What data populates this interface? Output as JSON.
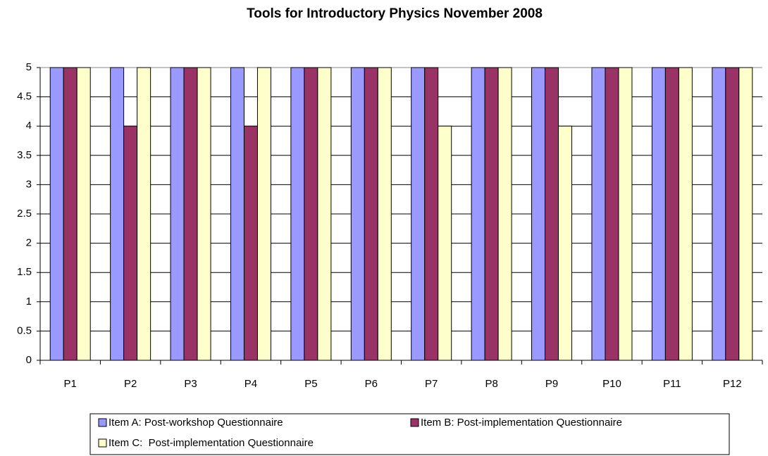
{
  "chart_data": {
    "type": "bar",
    "title": "Tools for Introductory Physics November 2008",
    "categories": [
      "P1",
      "P2",
      "P3",
      "P4",
      "P5",
      "P6",
      "P7",
      "P8",
      "P9",
      "P10",
      "P11",
      "P12"
    ],
    "series": [
      {
        "name": "Item A: Post-workshop Questionnaire",
        "color": "#9999ff",
        "values": [
          5,
          5,
          5,
          5,
          5,
          5,
          5,
          5,
          5,
          5,
          5,
          5
        ]
      },
      {
        "name": "Item B: Post-implementation Questionnaire",
        "color": "#993366",
        "values": [
          5,
          4,
          5,
          4,
          5,
          5,
          5,
          5,
          5,
          5,
          5,
          5
        ]
      },
      {
        "name": "Item C:  Post-implementation Questionnaire",
        "color": "#ffffcc",
        "values": [
          5,
          5,
          5,
          5,
          5,
          5,
          4,
          5,
          4,
          5,
          5,
          5
        ]
      }
    ],
    "ylim": [
      0,
      5
    ],
    "yticks": [
      0,
      0.5,
      1,
      1.5,
      2,
      2.5,
      3,
      3.5,
      4,
      4.5,
      5
    ],
    "grid": true,
    "legend": "bottom"
  }
}
